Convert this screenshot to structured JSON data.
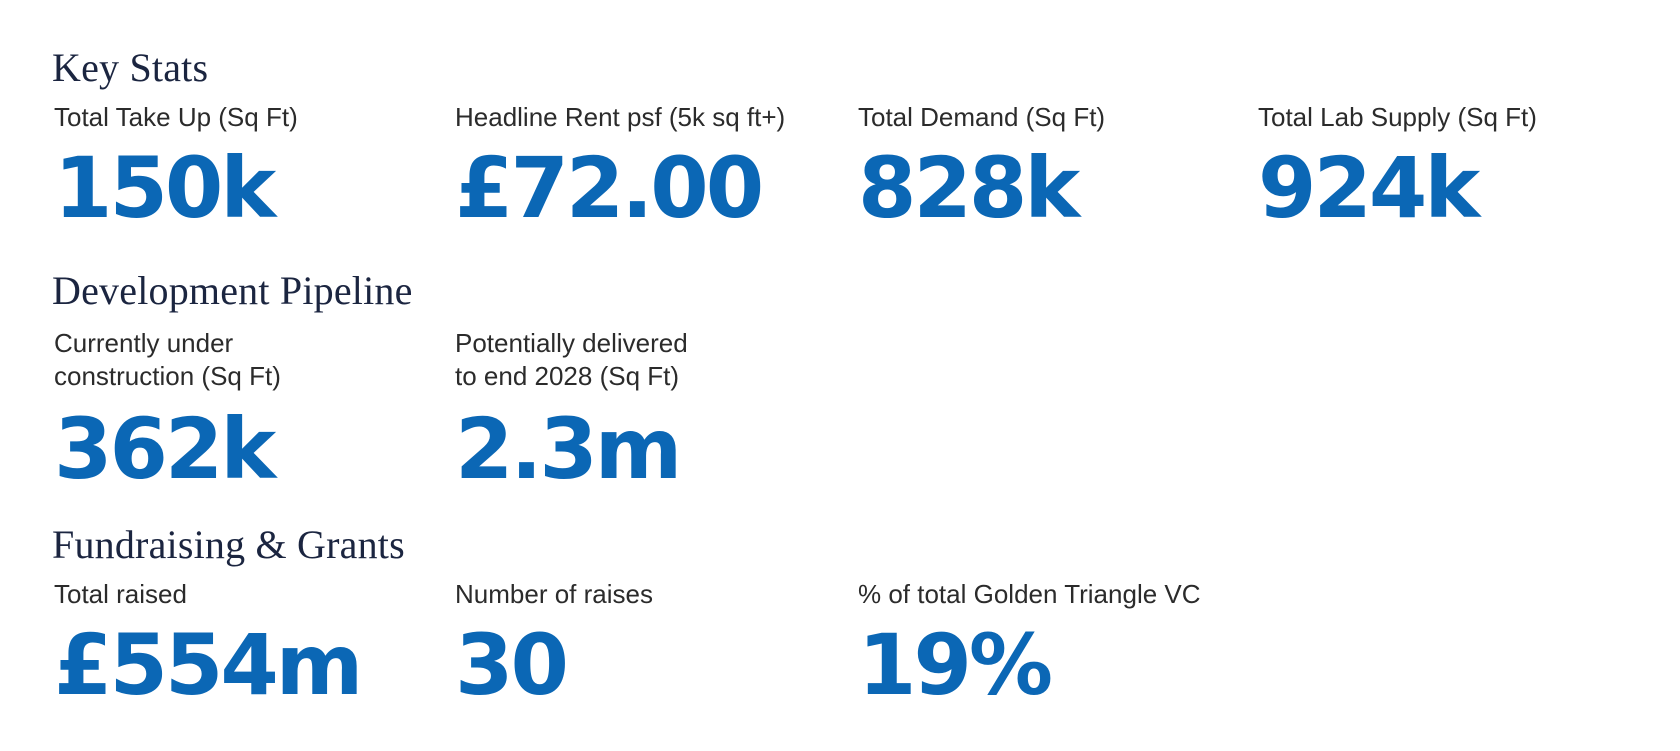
{
  "sections": [
    {
      "title": "Key Stats",
      "stats": [
        {
          "label": "Total Take Up (Sq Ft)",
          "value": "150k"
        },
        {
          "label": "Headline Rent psf (5k sq ft+)",
          "value": "£72.00"
        },
        {
          "label": "Total Demand (Sq Ft)",
          "value": "828k"
        },
        {
          "label": "Total Lab Supply (Sq Ft)",
          "value": "924k"
        }
      ]
    },
    {
      "title": "Development Pipeline",
      "stats": [
        {
          "label_line1": "Currently under",
          "label_line2": "construction (Sq Ft)",
          "value": "362k"
        },
        {
          "label_line1": "Potentially delivered",
          "label_line2": "to end 2028 (Sq Ft)",
          "value": "2.3m"
        }
      ]
    },
    {
      "title": "Fundraising & Grants",
      "stats": [
        {
          "label": "Total raised",
          "value": "£554m"
        },
        {
          "label": "Number of raises",
          "value": "30"
        },
        {
          "label": "% of total Golden Triangle VC",
          "value": "19%"
        }
      ]
    }
  ],
  "colors": {
    "heading": "#1b2540",
    "label": "#2b2b2b",
    "value": "#0b67b5",
    "background": "#ffffff"
  }
}
